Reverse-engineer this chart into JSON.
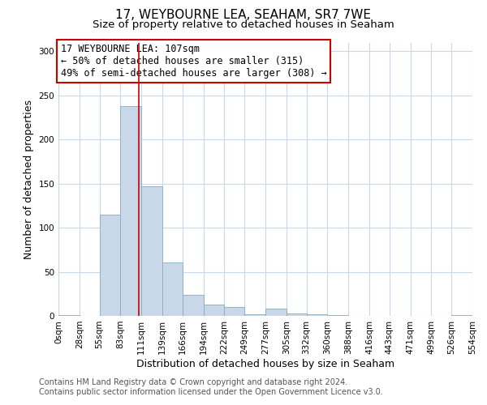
{
  "title": "17, WEYBOURNE LEA, SEAHAM, SR7 7WE",
  "subtitle": "Size of property relative to detached houses in Seaham",
  "xlabel": "Distribution of detached houses by size in Seaham",
  "ylabel": "Number of detached properties",
  "bar_color": "#c8d8e8",
  "bar_edge_color": "#8aaabf",
  "background_color": "#ffffff",
  "grid_color": "#c8d8e8",
  "vline_x": 107,
  "vline_color": "#cc0000",
  "bin_edges": [
    0,
    28,
    55,
    83,
    111,
    139,
    166,
    194,
    222,
    249,
    277,
    305,
    332,
    360,
    388,
    416,
    443,
    471,
    499,
    526,
    554
  ],
  "bar_heights": [
    1,
    0,
    115,
    238,
    147,
    61,
    24,
    13,
    10,
    2,
    8,
    3,
    2,
    1,
    0,
    0,
    0,
    0,
    0,
    1
  ],
  "tick_labels": [
    "0sqm",
    "28sqm",
    "55sqm",
    "83sqm",
    "111sqm",
    "139sqm",
    "166sqm",
    "194sqm",
    "222sqm",
    "249sqm",
    "277sqm",
    "305sqm",
    "332sqm",
    "360sqm",
    "388sqm",
    "416sqm",
    "443sqm",
    "471sqm",
    "499sqm",
    "526sqm",
    "554sqm"
  ],
  "ylim": [
    0,
    310
  ],
  "yticks": [
    0,
    50,
    100,
    150,
    200,
    250,
    300
  ],
  "annotation_title": "17 WEYBOURNE LEA: 107sqm",
  "annotation_line1": "← 50% of detached houses are smaller (315)",
  "annotation_line2": "49% of semi-detached houses are larger (308) →",
  "annotation_box_edge_color": "#cc0000",
  "footer_line1": "Contains HM Land Registry data © Crown copyright and database right 2024.",
  "footer_line2": "Contains public sector information licensed under the Open Government Licence v3.0.",
  "title_fontsize": 11,
  "subtitle_fontsize": 9.5,
  "axis_label_fontsize": 9,
  "tick_fontsize": 7.5,
  "annotation_fontsize": 8.5,
  "footer_fontsize": 7
}
